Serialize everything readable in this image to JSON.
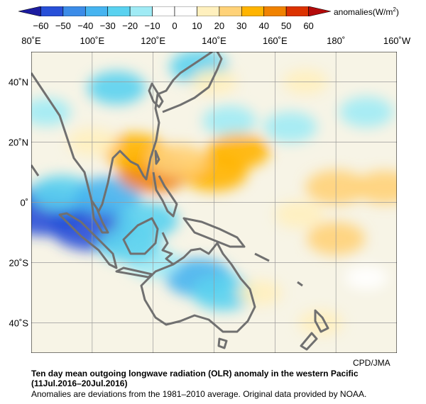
{
  "colorbar": {
    "unit_prefix": "anomalies(W/m",
    "unit_exp": "2",
    "unit_suffix": ")",
    "ticks": [
      "−60",
      "−50",
      "−40",
      "−30",
      "−20",
      "−10",
      "0",
      "10",
      "20",
      "30",
      "40",
      "50",
      "60"
    ],
    "colors": [
      "#1c1ca0",
      "#2850d8",
      "#3c8ce8",
      "#46b4f0",
      "#5ad2f0",
      "#a0ebf5",
      "#ffffff",
      "#ffffff",
      "#fff0be",
      "#ffd278",
      "#ffb400",
      "#f08200",
      "#dc3200",
      "#b40a0a"
    ]
  },
  "map": {
    "lon_labels": [
      "80˚E",
      "100˚E",
      "120˚E",
      "140˚E",
      "160˚E",
      "180˚",
      "160˚W"
    ],
    "lat_labels": [
      "40˚N",
      "20˚N",
      "0˚",
      "20˚S",
      "40˚S"
    ],
    "lon_values": [
      80,
      100,
      120,
      140,
      160,
      180,
      200
    ],
    "lat_values": [
      40,
      20,
      0,
      -20,
      -40
    ],
    "lon_range": [
      80,
      200
    ],
    "lat_range": [
      -50,
      50
    ],
    "anomaly_fields": [
      {
        "lon": 84,
        "lat": -3,
        "value": -55
      },
      {
        "lon": 100,
        "lat": -8,
        "value": -55
      },
      {
        "lon": 90,
        "lat": 3,
        "value": -30
      },
      {
        "lon": 105,
        "lat": 2,
        "value": -35
      },
      {
        "lon": 118,
        "lat": -6,
        "value": -30
      },
      {
        "lon": 135,
        "lat": -25,
        "value": -35
      },
      {
        "lon": 143,
        "lat": -30,
        "value": -30
      },
      {
        "lon": 120,
        "lat": -20,
        "value": -20
      },
      {
        "lon": 112,
        "lat": -14,
        "value": -30
      },
      {
        "lon": 108,
        "lat": 38,
        "value": -25
      },
      {
        "lon": 135,
        "lat": 45,
        "value": -25
      },
      {
        "lon": 145,
        "lat": 27,
        "value": -20
      },
      {
        "lon": 165,
        "lat": 25,
        "value": -20
      },
      {
        "lon": 190,
        "lat": 30,
        "value": -20
      },
      {
        "lon": 85,
        "lat": 30,
        "value": -15
      },
      {
        "lon": 120,
        "lat": 10,
        "value": 40
      },
      {
        "lon": 114,
        "lat": 17,
        "value": 30
      },
      {
        "lon": 140,
        "lat": 10,
        "value": 35
      },
      {
        "lon": 148,
        "lat": 17,
        "value": 30
      },
      {
        "lon": 128,
        "lat": 14,
        "value": 25
      },
      {
        "lon": 180,
        "lat": 5,
        "value": 28
      },
      {
        "lon": 196,
        "lat": 5,
        "value": 25
      },
      {
        "lon": 180,
        "lat": -12,
        "value": 25
      },
      {
        "lon": 168,
        "lat": -4,
        "value": 15
      },
      {
        "lon": 140,
        "lat": 40,
        "value": 12
      },
      {
        "lon": 155,
        "lat": -30,
        "value": 10
      },
      {
        "lon": 175,
        "lat": -40,
        "value": 10
      },
      {
        "lon": 190,
        "lat": -25,
        "value": 8
      },
      {
        "lon": 170,
        "lat": 40,
        "value": 10
      },
      {
        "lon": 100,
        "lat": 20,
        "value": 15
      }
    ]
  },
  "credit": "CPD/JMA",
  "caption": {
    "line1": "Ten day mean outgoing longwave radiation (OLR) anomaly in the western Pacific",
    "line2": "(11Jul.2016–20Jul.2016)",
    "line3": "Anomalies are deviations from the 1981–2010 average. Original data provided by NOAA."
  }
}
